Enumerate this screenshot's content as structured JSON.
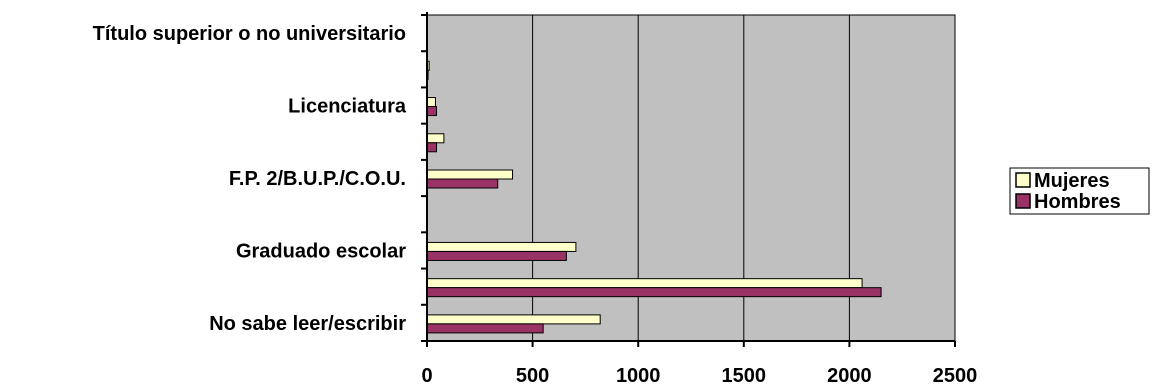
{
  "chart_data": {
    "type": "bar",
    "orientation": "horizontal",
    "title": "",
    "xlabel": "",
    "ylabel": "",
    "xlim": [
      0,
      2500
    ],
    "x_ticks": [
      0,
      500,
      1000,
      1500,
      2000,
      2500
    ],
    "grid": true,
    "legend_position": "right",
    "categories": [
      "No sabe leer/escribir",
      "",
      "Graduado escolar",
      "",
      "F.P. 2/B.U.P./C.O.U.",
      "",
      "Licenciatura",
      "",
      "Título superior o no universitario"
    ],
    "series": [
      {
        "name": "Hombres",
        "color": "#993366",
        "values": [
          550,
          2150,
          660,
          0,
          335,
          45,
          45,
          5,
          0
        ]
      },
      {
        "name": "Mujeres",
        "color": "#FFFFCC",
        "values": [
          820,
          2060,
          705,
          0,
          405,
          80,
          40,
          10,
          0
        ]
      }
    ],
    "legend_order": [
      "Mujeres",
      "Hombres"
    ],
    "plot_background": "#C0C0C0"
  }
}
